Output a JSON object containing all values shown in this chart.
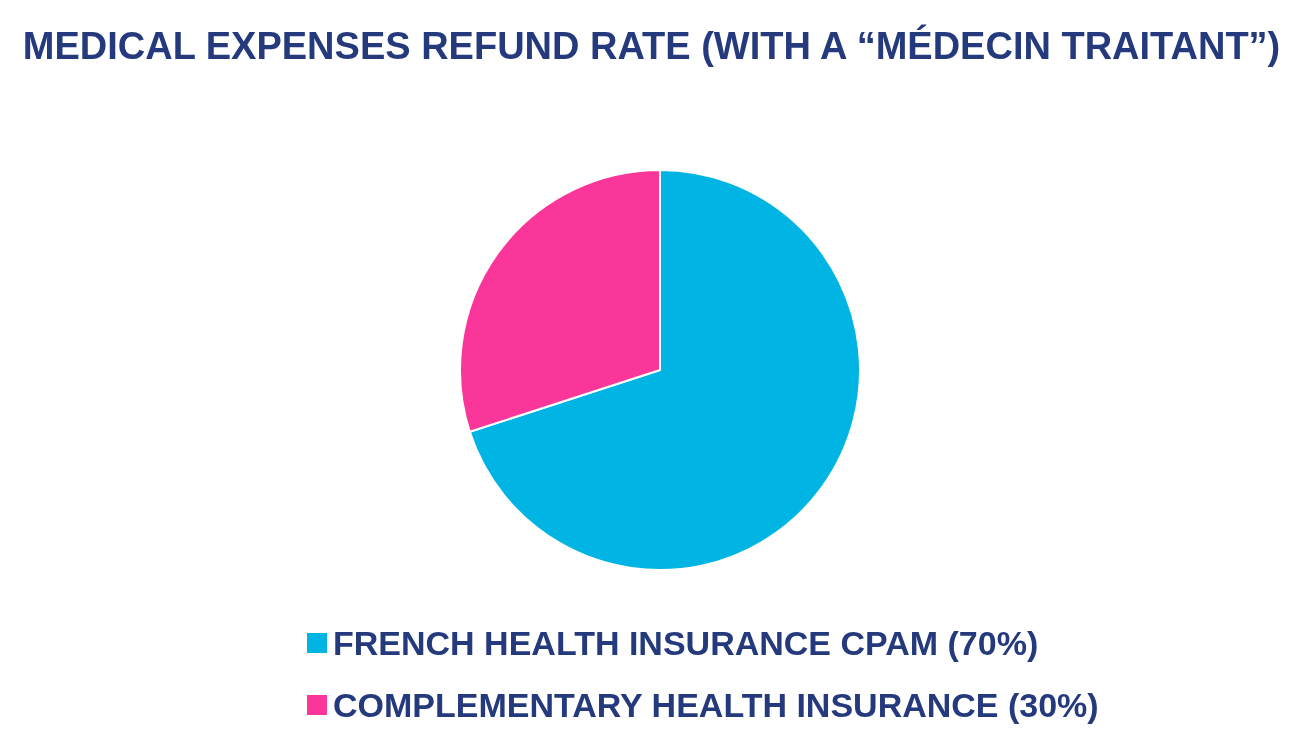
{
  "chart_data": {
    "type": "pie",
    "title": "MEDICAL EXPENSES REFUND RATE (WITH A “MÉDECIN TRAITANT”)",
    "categories": [
      "FRENCH HEALTH INSURANCE CPAM (70%)",
      "COMPLEMENTARY HEALTH INSURANCE (30%)"
    ],
    "values": [
      70,
      30
    ],
    "colors": [
      "#00b4e4",
      "#fb369a"
    ],
    "legend": "bottom"
  }
}
